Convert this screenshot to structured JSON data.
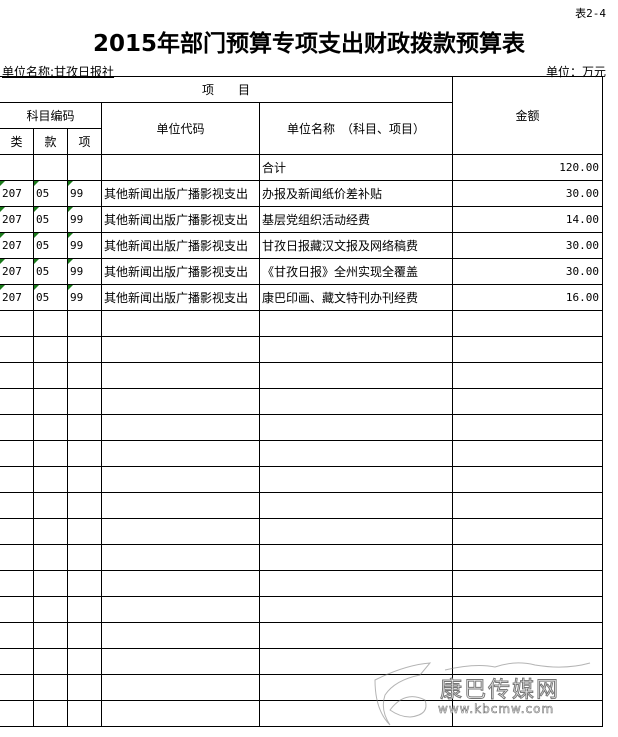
{
  "table_no": "表2-4",
  "title": "2015年部门预算专项支出财政拨款预算表",
  "unit_name": "单位名称:甘孜日报社",
  "unit": "单位：万元",
  "headers": {
    "project": "项　　目",
    "subject_code": "科目编码",
    "lei": "类",
    "kuan": "款",
    "xiang": "项",
    "unit_code": "单位代码",
    "unit_name_col": "单位名称　（科目、项目）",
    "amount": "金额"
  },
  "total": {
    "label": "合计",
    "amount": "120.00"
  },
  "rows": [
    {
      "lei": "207",
      "kuan": "05",
      "xiang": "99",
      "code": "其他新闻出版广播影视支出",
      "name": "办报及新闻纸价差补贴",
      "amount": "30.00"
    },
    {
      "lei": "207",
      "kuan": "05",
      "xiang": "99",
      "code": "其他新闻出版广播影视支出",
      "name": "基层党组织活动经费",
      "amount": "14.00"
    },
    {
      "lei": "207",
      "kuan": "05",
      "xiang": "99",
      "code": "其他新闻出版广播影视支出",
      "name": "甘孜日报藏汉文报及网络稿费",
      "amount": "30.00"
    },
    {
      "lei": "207",
      "kuan": "05",
      "xiang": "99",
      "code": "其他新闻出版广播影视支出",
      "name": "《甘孜日报》全州实现全覆盖",
      "amount": "30.00"
    },
    {
      "lei": "207",
      "kuan": "05",
      "xiang": "99",
      "code": "其他新闻出版广播影视支出",
      "name": "康巴印画、藏文特刊办刊经费",
      "amount": "16.00"
    }
  ],
  "watermark": {
    "name": "康巴传媒网",
    "url": "www.kbcmw.com"
  }
}
